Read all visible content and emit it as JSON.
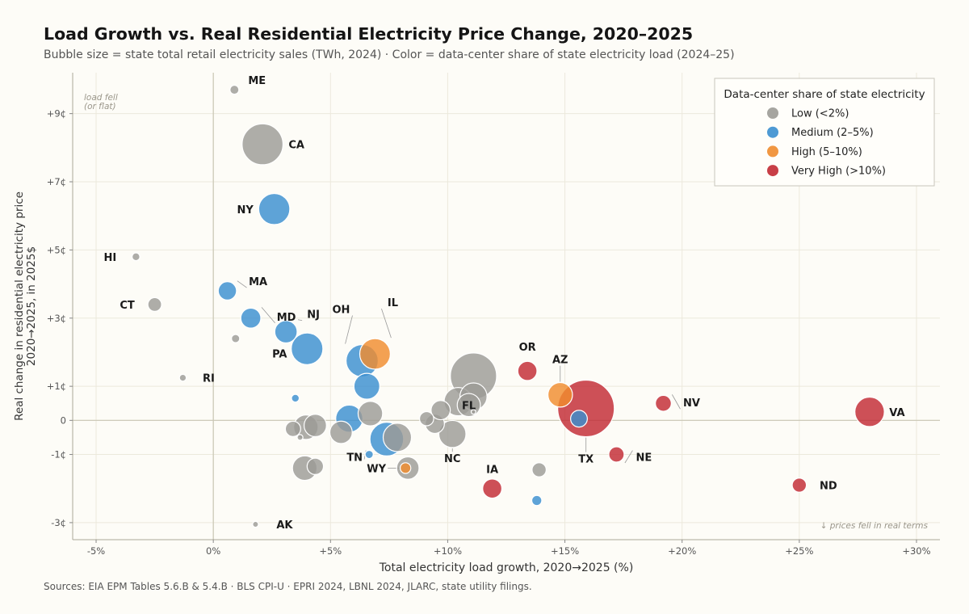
{
  "title": "Load Growth vs. Real Residential Electricity Price Change, 2020–2025",
  "subtitle": "Bubble size = state total retail electricity sales (TWh, 2024)   ·   Color = data-center share of state electricity load (2024–25)",
  "source": "Sources: EIA EPM Tables 5.6.B & 5.4.B  ·  BLS CPI-U  ·  EPRI 2024, LBNL 2024, JLARC, state utility filings.",
  "chart_data": {
    "type": "scatter",
    "title": "Load Growth vs. Real Residential Electricity Price Change, 2020–2025",
    "xlabel": "Total electricity load growth, 2020→2025  (%)",
    "ylabel": "Real change in residential electricity price\n2020→2025, in 2025$",
    "xlim": [
      -6,
      31
    ],
    "ylim": [
      -3.5,
      10.2
    ],
    "x_ticks": [
      -5,
      0,
      5,
      10,
      15,
      20,
      25,
      30
    ],
    "x_tick_labels": [
      "-5%",
      "0%",
      "+5%",
      "+10%",
      "+15%",
      "+20%",
      "+25%",
      "+30%"
    ],
    "y_ticks": [
      -3,
      -1,
      0,
      1,
      3,
      5,
      7,
      9
    ],
    "y_tick_labels": [
      "-3¢",
      "-1¢",
      "0",
      "+1¢",
      "+3¢",
      "+5¢",
      "+7¢",
      "+9¢"
    ],
    "grid": true,
    "legend": {
      "title": "Data-center share of state electricity",
      "placement": "top-right",
      "items": [
        {
          "key": "low",
          "label": "Low  (<2%)",
          "color": "#9c9b96"
        },
        {
          "key": "medium",
          "label": "Medium  (2–5%)",
          "color": "#3b8fcf"
        },
        {
          "key": "high",
          "label": "High  (5–10%)",
          "color": "#f08c2e"
        },
        {
          "key": "very_high",
          "label": "Very High  (>10%)",
          "color": "#c22a33"
        }
      ]
    },
    "annotations": {
      "upper_left": "load fell\n(or flat)",
      "lower_right": "↓ prices fell in real terms"
    },
    "points": [
      {
        "state": "ME",
        "x": 0.9,
        "y": 9.7,
        "size_twh": 12,
        "tier": "low"
      },
      {
        "state": "CA",
        "x": 2.1,
        "y": 8.1,
        "size_twh": 250,
        "tier": "low"
      },
      {
        "state": "NY",
        "x": 2.6,
        "y": 6.2,
        "size_twh": 145,
        "tier": "medium"
      },
      {
        "state": "HI",
        "x": -3.3,
        "y": 4.8,
        "size_twh": 9,
        "tier": "low"
      },
      {
        "state": "MA",
        "x": 0.6,
        "y": 3.8,
        "size_twh": 50,
        "tier": "medium"
      },
      {
        "state": "CT",
        "x": -2.5,
        "y": 3.4,
        "size_twh": 28,
        "tier": "low"
      },
      {
        "state": "MD",
        "x": 1.6,
        "y": 3.0,
        "size_twh": 60,
        "tier": "medium"
      },
      {
        "state": "NJ",
        "x": 3.1,
        "y": 2.6,
        "size_twh": 75,
        "tier": "medium"
      },
      {
        "state": "",
        "x": 0.95,
        "y": 2.4,
        "size_twh": 10,
        "tier": "low"
      },
      {
        "state": "PA",
        "x": 4.0,
        "y": 2.1,
        "size_twh": 150,
        "tier": "medium"
      },
      {
        "state": "OH",
        "x": 6.35,
        "y": 1.75,
        "size_twh": 155,
        "tier": "medium"
      },
      {
        "state": "IL",
        "x": 6.9,
        "y": 1.95,
        "size_twh": 140,
        "tier": "high"
      },
      {
        "state": "RI",
        "x": -1.3,
        "y": 1.25,
        "size_twh": 7,
        "tier": "low"
      },
      {
        "state": "",
        "x": 6.55,
        "y": 1.0,
        "size_twh": 100,
        "tier": "medium"
      },
      {
        "state": "",
        "x": 3.5,
        "y": 0.65,
        "size_twh": 9,
        "tier": "medium"
      },
      {
        "state": "",
        "x": 5.8,
        "y": 0.05,
        "size_twh": 110,
        "tier": "medium"
      },
      {
        "state": "",
        "x": 6.7,
        "y": 0.2,
        "size_twh": 90,
        "tier": "low"
      },
      {
        "state": "",
        "x": 3.4,
        "y": -0.25,
        "size_twh": 35,
        "tier": "low"
      },
      {
        "state": "",
        "x": 3.95,
        "y": -0.2,
        "size_twh": 90,
        "tier": "low"
      },
      {
        "state": "",
        "x": 4.35,
        "y": -0.15,
        "size_twh": 75,
        "tier": "low"
      },
      {
        "state": "",
        "x": 3.7,
        "y": -0.5,
        "size_twh": 5,
        "tier": "low"
      },
      {
        "state": "",
        "x": 5.45,
        "y": -0.35,
        "size_twh": 75,
        "tier": "low"
      },
      {
        "state": "",
        "x": 7.4,
        "y": -0.55,
        "size_twh": 170,
        "tier": "medium"
      },
      {
        "state": "",
        "x": 7.85,
        "y": -0.5,
        "size_twh": 120,
        "tier": "low"
      },
      {
        "state": "TN",
        "x": 6.65,
        "y": -1.0,
        "size_twh": 10,
        "tier": "medium"
      },
      {
        "state": "",
        "x": 3.9,
        "y": -1.4,
        "size_twh": 90,
        "tier": "low"
      },
      {
        "state": "",
        "x": 4.35,
        "y": -1.35,
        "size_twh": 40,
        "tier": "low"
      },
      {
        "state": "WY",
        "x": 8.2,
        "y": -1.4,
        "size_twh": 17,
        "tier": "high"
      },
      {
        "state": "",
        "x": 8.3,
        "y": -1.4,
        "size_twh": 75,
        "tier": "low"
      },
      {
        "state": "",
        "x": 9.1,
        "y": 0.05,
        "size_twh": 30,
        "tier": "low"
      },
      {
        "state": "",
        "x": 9.45,
        "y": -0.1,
        "size_twh": 55,
        "tier": "low"
      },
      {
        "state": "",
        "x": 9.7,
        "y": 0.3,
        "size_twh": 55,
        "tier": "low"
      },
      {
        "state": "NC",
        "x": 10.2,
        "y": -0.4,
        "size_twh": 110,
        "tier": "low"
      },
      {
        "state": "",
        "x": 10.45,
        "y": 0.55,
        "size_twh": 120,
        "tier": "low"
      },
      {
        "state": "",
        "x": 11.1,
        "y": 1.3,
        "size_twh": 320,
        "tier": "low"
      },
      {
        "state": "",
        "x": 11.1,
        "y": 0.7,
        "size_twh": 110,
        "tier": "low"
      },
      {
        "state": "FL",
        "x": 10.9,
        "y": 0.45,
        "size_twh": 80,
        "tier": "low"
      },
      {
        "state": "",
        "x": 11.1,
        "y": 0.25,
        "size_twh": 3,
        "tier": "low"
      },
      {
        "state": "OR",
        "x": 13.4,
        "y": 1.45,
        "size_twh": 55,
        "tier": "very_high"
      },
      {
        "state": "AZ",
        "x": 14.8,
        "y": 0.75,
        "size_twh": 90,
        "tier": "high"
      },
      {
        "state": "TX",
        "x": 15.9,
        "y": 0.35,
        "size_twh": 480,
        "tier": "very_high"
      },
      {
        "state": "",
        "x": 15.6,
        "y": 0.05,
        "size_twh": 42,
        "tier": "medium"
      },
      {
        "state": "NV",
        "x": 19.2,
        "y": 0.5,
        "size_twh": 38,
        "tier": "very_high"
      },
      {
        "state": "NE",
        "x": 17.2,
        "y": -1.0,
        "size_twh": 35,
        "tier": "very_high"
      },
      {
        "state": "IA",
        "x": 11.9,
        "y": -2.0,
        "size_twh": 55,
        "tier": "very_high"
      },
      {
        "state": "",
        "x": 13.9,
        "y": -1.45,
        "size_twh": 30,
        "tier": "low"
      },
      {
        "state": "",
        "x": 13.8,
        "y": -2.35,
        "size_twh": 15,
        "tier": "medium"
      },
      {
        "state": "VA",
        "x": 28.0,
        "y": 0.25,
        "size_twh": 130,
        "tier": "very_high"
      },
      {
        "state": "ND",
        "x": 25.0,
        "y": -1.9,
        "size_twh": 30,
        "tier": "very_high"
      },
      {
        "state": "AK",
        "x": 1.8,
        "y": -3.05,
        "size_twh": 5,
        "tier": "low"
      }
    ]
  }
}
